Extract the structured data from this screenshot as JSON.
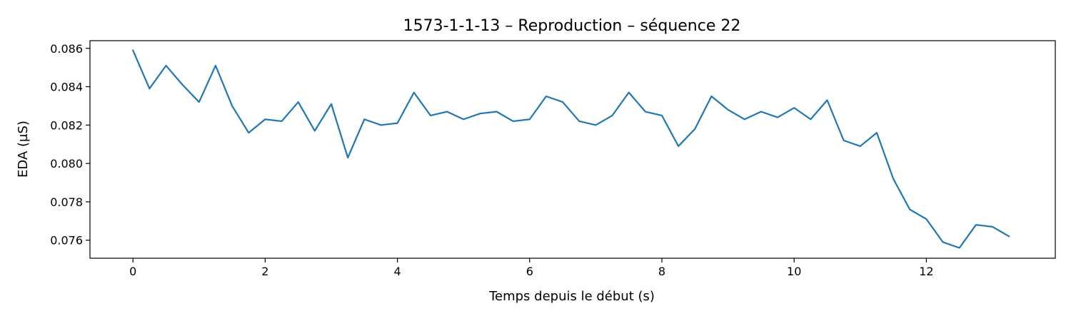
{
  "chart_data": {
    "type": "line",
    "title": "1573-1-1-13 – Reproduction – séquence 22",
    "xlabel": "Temps depuis le début (s)",
    "ylabel": "EDA (µS)",
    "xlim": [
      -0.65,
      13.95
    ],
    "ylim": [
      0.07506,
      0.0864
    ],
    "xticks": [
      0,
      2,
      4,
      6,
      8,
      10,
      12
    ],
    "xtick_labels": [
      "0",
      "2",
      "4",
      "6",
      "8",
      "10",
      "12"
    ],
    "yticks": [
      0.076,
      0.078,
      0.08,
      0.082,
      0.084,
      0.086
    ],
    "ytick_labels": [
      "0.076",
      "0.078",
      "0.080",
      "0.082",
      "0.084",
      "0.086"
    ],
    "grid": false,
    "line_color": "#1f77b4",
    "series": [
      {
        "x": [
          0,
          0.25,
          0.5,
          0.75,
          1.0,
          1.25,
          1.5,
          1.75,
          2.0,
          2.25,
          2.5,
          2.75,
          3.0,
          3.25,
          3.5,
          3.75,
          4.0,
          4.25,
          4.5,
          4.75,
          5.0,
          5.25,
          5.5,
          5.75,
          6.0,
          6.25,
          6.5,
          6.75,
          7.0,
          7.25,
          7.5,
          7.75,
          8.0,
          8.25,
          8.5,
          8.75,
          9.0,
          9.25,
          9.5,
          9.75,
          10.0,
          10.25,
          10.5,
          10.75,
          11.0,
          11.25,
          11.5,
          11.75,
          12.0,
          12.25,
          12.5,
          12.75,
          13.0,
          13.25
        ],
        "values": [
          0.0859,
          0.0839,
          0.0851,
          0.0841,
          0.0832,
          0.0851,
          0.083,
          0.0816,
          0.0823,
          0.0822,
          0.0832,
          0.0817,
          0.0831,
          0.0803,
          0.0823,
          0.082,
          0.0821,
          0.0837,
          0.0825,
          0.0827,
          0.0823,
          0.0826,
          0.0827,
          0.0822,
          0.0823,
          0.0835,
          0.0832,
          0.0822,
          0.082,
          0.0825,
          0.0837,
          0.0827,
          0.0825,
          0.0809,
          0.0818,
          0.0835,
          0.0828,
          0.0823,
          0.0827,
          0.0824,
          0.0829,
          0.0823,
          0.0833,
          0.0812,
          0.0809,
          0.0816,
          0.0792,
          0.0776,
          0.0771,
          0.0759,
          0.0756,
          0.0768,
          0.0767,
          0.0762
        ]
      }
    ]
  }
}
